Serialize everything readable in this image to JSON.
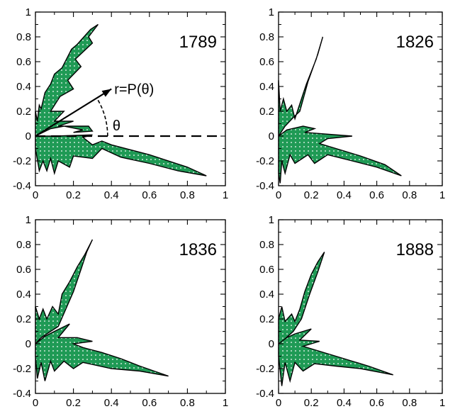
{
  "figure": {
    "colors": {
      "fill": "#1f9a55",
      "dot": "#ffffff",
      "stroke": "#000000",
      "background": "#ffffff"
    }
  },
  "chart_data": [
    {
      "type": "area",
      "subtype": "polar-distribution",
      "title": "1789",
      "xlim": [
        0,
        1
      ],
      "ylim": [
        -0.4,
        1
      ],
      "xticks": [
        "0",
        "0.2",
        "0.4",
        "0.6",
        "0.8",
        "1"
      ],
      "yticks": [
        "-0.4",
        "-0.2",
        "0",
        "0.2",
        "0.4",
        "0.6",
        "0.8",
        "1"
      ],
      "grid": false,
      "annotation": {
        "arrow_label": "r=P(θ)",
        "angle_label": "θ",
        "arrow_tip": [
          0.4,
          0.38
        ],
        "baseline_to_x": 0.98
      },
      "points": [
        [
          0,
          0
        ],
        [
          0.08,
          0.06
        ],
        [
          0.15,
          0.08
        ],
        [
          0.25,
          0.05
        ],
        [
          0.2,
          0.03
        ],
        [
          0.3,
          0.04
        ],
        [
          0.28,
          0.08
        ],
        [
          0.12,
          0.08
        ],
        [
          0.2,
          0.12
        ],
        [
          0.1,
          0.12
        ],
        [
          0.15,
          0.2
        ],
        [
          0.08,
          0.2
        ],
        [
          0.13,
          0.32
        ],
        [
          0.2,
          0.38
        ],
        [
          0.17,
          0.45
        ],
        [
          0.24,
          0.56
        ],
        [
          0.21,
          0.62
        ],
        [
          0.3,
          0.75
        ],
        [
          0.28,
          0.8
        ],
        [
          0.33,
          0.9
        ],
        [
          0.29,
          0.86
        ],
        [
          0.22,
          0.74
        ],
        [
          0.19,
          0.7
        ],
        [
          0.14,
          0.55
        ],
        [
          0.1,
          0.5
        ],
        [
          0.08,
          0.42
        ],
        [
          0.05,
          0.35
        ],
        [
          0.03,
          0.22
        ],
        [
          0.02,
          0.25
        ],
        [
          0.01,
          0.12
        ],
        [
          0,
          0.2
        ],
        [
          0,
          -0.1
        ],
        [
          0.02,
          -0.28
        ],
        [
          0.04,
          -0.2
        ],
        [
          0.06,
          -0.28
        ],
        [
          0.08,
          -0.18
        ],
        [
          0.1,
          -0.3
        ],
        [
          0.12,
          -0.2
        ],
        [
          0.18,
          -0.25
        ],
        [
          0.2,
          -0.16
        ],
        [
          0.3,
          -0.18
        ],
        [
          0.35,
          -0.1
        ],
        [
          0.45,
          -0.17
        ],
        [
          0.6,
          -0.22
        ],
        [
          0.75,
          -0.28
        ],
        [
          0.9,
          -0.32
        ],
        [
          0.8,
          -0.25
        ],
        [
          0.6,
          -0.15
        ],
        [
          0.4,
          -0.07
        ],
        [
          0.35,
          -0.04
        ],
        [
          0.3,
          -0.07
        ],
        [
          0.25,
          -0.01
        ],
        [
          0.3,
          0.01
        ],
        [
          0.1,
          0
        ]
      ]
    },
    {
      "type": "area",
      "subtype": "polar-distribution",
      "title": "1826",
      "xlim": [
        0,
        1
      ],
      "ylim": [
        -0.4,
        1
      ],
      "xticks": [
        "0",
        "0.2",
        "0.4",
        "0.6",
        "0.8",
        "1"
      ],
      "yticks": [
        "-0.4",
        "-0.2",
        "0",
        "0.2",
        "0.4",
        "0.6",
        "0.8",
        "1"
      ],
      "grid": false,
      "points": [
        [
          0,
          0
        ],
        [
          0.05,
          0.05
        ],
        [
          0.15,
          0.08
        ],
        [
          0.22,
          0.06
        ],
        [
          0.16,
          0.03
        ],
        [
          0.45,
          0
        ],
        [
          0.3,
          -0.02
        ],
        [
          0.25,
          -0.06
        ],
        [
          0.35,
          -0.1
        ],
        [
          0.5,
          -0.16
        ],
        [
          0.65,
          -0.23
        ],
        [
          0.75,
          -0.32
        ],
        [
          0.6,
          -0.25
        ],
        [
          0.45,
          -0.2
        ],
        [
          0.3,
          -0.15
        ],
        [
          0.22,
          -0.22
        ],
        [
          0.18,
          -0.15
        ],
        [
          0.1,
          -0.22
        ],
        [
          0.07,
          -0.15
        ],
        [
          0.04,
          -0.3
        ],
        [
          0.02,
          -0.2
        ],
        [
          0.01,
          -0.38
        ],
        [
          0,
          -0.3
        ],
        [
          0,
          0.45
        ],
        [
          0.01,
          0.2
        ],
        [
          0.03,
          0.3
        ],
        [
          0.05,
          0.2
        ],
        [
          0.08,
          0.25
        ],
        [
          0.1,
          0.14
        ],
        [
          0.14,
          0.3
        ],
        [
          0.17,
          0.42
        ],
        [
          0.2,
          0.52
        ],
        [
          0.23,
          0.62
        ],
        [
          0.27,
          0.8
        ],
        [
          0.24,
          0.66
        ],
        [
          0.18,
          0.44
        ],
        [
          0.13,
          0.2
        ],
        [
          0.09,
          0.15
        ],
        [
          0.04,
          0.08
        ]
      ]
    },
    {
      "type": "area",
      "subtype": "polar-distribution",
      "title": "1836",
      "xlim": [
        0,
        1
      ],
      "ylim": [
        -0.4,
        1
      ],
      "xticks": [
        "0",
        "0.2",
        "0.4",
        "0.6",
        "0.8",
        "1"
      ],
      "yticks": [
        "-0.4",
        "-0.2",
        "0",
        "0.2",
        "0.4",
        "0.6",
        "0.8",
        "1"
      ],
      "grid": false,
      "points": [
        [
          0,
          0
        ],
        [
          0.05,
          0.06
        ],
        [
          0.1,
          0.1
        ],
        [
          0.18,
          0.16
        ],
        [
          0.12,
          0.05
        ],
        [
          0.22,
          0.05
        ],
        [
          0.3,
          0.02
        ],
        [
          0.2,
          0
        ],
        [
          0.25,
          -0.03
        ],
        [
          0.35,
          -0.07
        ],
        [
          0.45,
          -0.12
        ],
        [
          0.55,
          -0.18
        ],
        [
          0.7,
          -0.26
        ],
        [
          0.55,
          -0.22
        ],
        [
          0.4,
          -0.2
        ],
        [
          0.25,
          -0.15
        ],
        [
          0.2,
          -0.2
        ],
        [
          0.15,
          -0.14
        ],
        [
          0.1,
          -0.22
        ],
        [
          0.08,
          -0.14
        ],
        [
          0.05,
          -0.3
        ],
        [
          0.03,
          -0.15
        ],
        [
          0.01,
          -0.28
        ],
        [
          0,
          -0.1
        ],
        [
          0,
          0.3
        ],
        [
          0.02,
          0.2
        ],
        [
          0.04,
          0.28
        ],
        [
          0.06,
          0.2
        ],
        [
          0.09,
          0.3
        ],
        [
          0.12,
          0.24
        ],
        [
          0.14,
          0.4
        ],
        [
          0.18,
          0.5
        ],
        [
          0.22,
          0.62
        ],
        [
          0.26,
          0.72
        ],
        [
          0.3,
          0.84
        ],
        [
          0.27,
          0.74
        ],
        [
          0.24,
          0.6
        ],
        [
          0.2,
          0.42
        ],
        [
          0.16,
          0.28
        ],
        [
          0.12,
          0.14
        ],
        [
          0.08,
          0.1
        ],
        [
          0.03,
          0.05
        ]
      ]
    },
    {
      "type": "area",
      "subtype": "polar-distribution",
      "title": "1888",
      "xlim": [
        0,
        1
      ],
      "ylim": [
        -0.4,
        1
      ],
      "xticks": [
        "0",
        "0.2",
        "0.4",
        "0.6",
        "0.8",
        "1"
      ],
      "yticks": [
        "-0.4",
        "-0.2",
        "0",
        "0.2",
        "0.4",
        "0.6",
        "0.8",
        "1"
      ],
      "grid": false,
      "points": [
        [
          0,
          0
        ],
        [
          0.05,
          0.05
        ],
        [
          0.1,
          0.08
        ],
        [
          0.2,
          0.12
        ],
        [
          0.13,
          0.03
        ],
        [
          0.25,
          0.02
        ],
        [
          0.15,
          -0.02
        ],
        [
          0.3,
          -0.08
        ],
        [
          0.45,
          -0.14
        ],
        [
          0.55,
          -0.18
        ],
        [
          0.7,
          -0.25
        ],
        [
          0.5,
          -0.2
        ],
        [
          0.35,
          -0.18
        ],
        [
          0.22,
          -0.16
        ],
        [
          0.15,
          -0.22
        ],
        [
          0.1,
          -0.15
        ],
        [
          0.07,
          -0.3
        ],
        [
          0.04,
          -0.15
        ],
        [
          0.02,
          -0.34
        ],
        [
          0,
          -0.1
        ],
        [
          0,
          0.2
        ],
        [
          0.02,
          0.3
        ],
        [
          0.04,
          0.18
        ],
        [
          0.08,
          0.24
        ],
        [
          0.1,
          0.18
        ],
        [
          0.13,
          0.28
        ],
        [
          0.16,
          0.42
        ],
        [
          0.2,
          0.56
        ],
        [
          0.24,
          0.66
        ],
        [
          0.28,
          0.74
        ],
        [
          0.24,
          0.58
        ],
        [
          0.19,
          0.4
        ],
        [
          0.14,
          0.2
        ],
        [
          0.09,
          0.1
        ],
        [
          0.04,
          0.04
        ]
      ]
    }
  ]
}
